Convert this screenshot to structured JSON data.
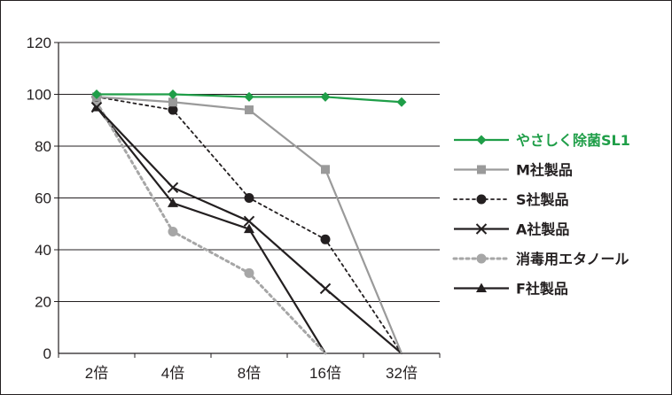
{
  "chart_data": {
    "type": "line",
    "categories": [
      "2倍",
      "4倍",
      "8倍",
      "16倍",
      "32倍"
    ],
    "ylim": [
      0,
      120
    ],
    "yticks": [
      0,
      20,
      40,
      60,
      80,
      100,
      120
    ],
    "grid": true,
    "legend_position": "right",
    "series": [
      {
        "name": "やさしく除菌SL1",
        "values": [
          100,
          100,
          99,
          99,
          97
        ],
        "color": "#1f9e48",
        "marker": "diamond",
        "dash": "solid"
      },
      {
        "name": "M社製品",
        "values": [
          99,
          97,
          94,
          71,
          0
        ],
        "color": "#9a9a9a",
        "marker": "square",
        "dash": "solid"
      },
      {
        "name": "S社製品",
        "values": [
          99,
          94,
          60,
          44,
          0
        ],
        "color": "#231f20",
        "marker": "circle",
        "dash": "dotted"
      },
      {
        "name": "A社製品",
        "values": [
          95,
          64,
          51,
          25,
          0
        ],
        "color": "#231f20",
        "marker": "x",
        "dash": "solid"
      },
      {
        "name": "消毒用エタノール",
        "values": [
          97,
          47,
          31,
          0,
          null
        ],
        "color": "#a6a6a6",
        "marker": "circle",
        "dash": "dotted"
      },
      {
        "name": "F社製品",
        "values": [
          95,
          58,
          48,
          0,
          null
        ],
        "color": "#231f20",
        "marker": "triangle",
        "dash": "solid"
      }
    ]
  }
}
